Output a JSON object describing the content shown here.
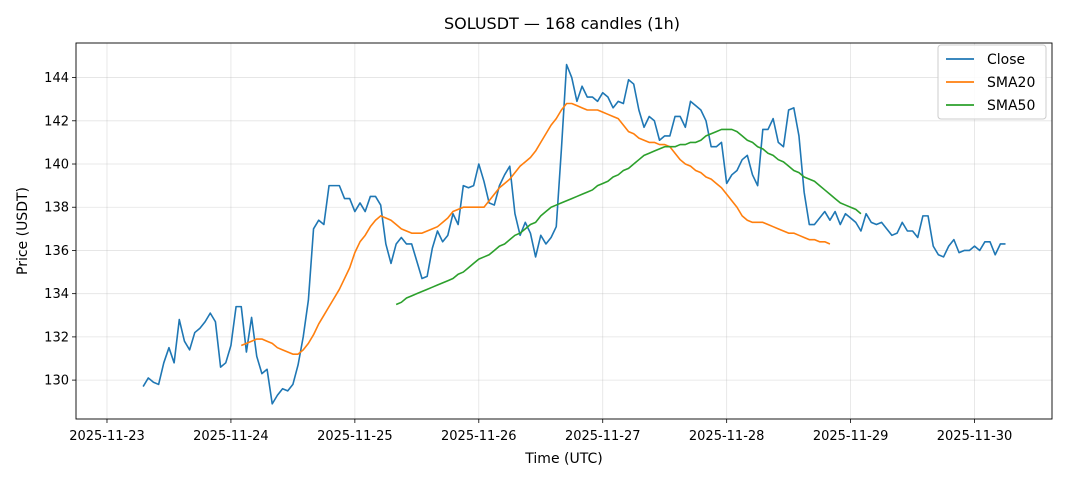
{
  "chart_data": {
    "type": "line",
    "title": "SOLUSDT — 168 candles (1h)",
    "xlabel": "Time (UTC)",
    "ylabel": "Price (USDT)",
    "x_start": "2025-11-23T07:00",
    "x_step_hours": 1,
    "xlim": [
      "2025-11-22T18:00",
      "2025-11-30T15:00"
    ],
    "ylim": [
      128.2,
      145.6
    ],
    "x_ticks": [
      "2025-11-23",
      "2025-11-24",
      "2025-11-25",
      "2025-11-26",
      "2025-11-27",
      "2025-11-28",
      "2025-11-29",
      "2025-11-30"
    ],
    "y_ticks": [
      130,
      132,
      134,
      136,
      138,
      140,
      142,
      144
    ],
    "grid": true,
    "legend": "top-right",
    "series": [
      {
        "name": "Close",
        "color": "#1f77b4",
        "values": [
          129.7,
          130.1,
          129.9,
          129.8,
          130.8,
          131.5,
          130.8,
          132.8,
          131.8,
          131.4,
          132.2,
          132.4,
          132.7,
          133.1,
          132.7,
          130.6,
          130.8,
          131.6,
          133.4,
          133.4,
          131.3,
          132.9,
          131.1,
          130.3,
          130.5,
          128.9,
          129.3,
          129.6,
          129.5,
          129.8,
          130.7,
          132.0,
          133.7,
          137.0,
          137.4,
          137.2,
          139.0,
          139.0,
          139.0,
          138.4,
          138.4,
          137.8,
          138.2,
          137.8,
          138.5,
          138.5,
          138.1,
          136.3,
          135.4,
          136.3,
          136.6,
          136.3,
          136.3,
          135.5,
          134.7,
          134.8,
          136.1,
          136.9,
          136.4,
          136.7,
          137.7,
          137.2,
          139.0,
          138.9,
          139.0,
          140.0,
          139.2,
          138.2,
          138.1,
          139.0,
          139.5,
          139.9,
          137.7,
          136.7,
          137.3,
          136.8,
          135.7,
          136.7,
          136.3,
          136.6,
          137.1,
          140.7,
          144.6,
          144.0,
          142.9,
          143.6,
          143.1,
          143.1,
          142.9,
          143.3,
          143.1,
          142.6,
          142.9,
          142.8,
          143.9,
          143.7,
          142.5,
          141.7,
          142.2,
          142.0,
          141.1,
          141.3,
          141.3,
          142.2,
          142.2,
          141.7,
          142.9,
          142.7,
          142.5,
          142.0,
          140.8,
          140.8,
          141.0,
          139.1,
          139.5,
          139.7,
          140.2,
          140.4,
          139.5,
          139.0,
          141.6,
          141.6,
          142.1,
          141.0,
          140.8,
          142.5,
          142.6,
          141.3,
          138.7,
          137.2,
          137.2,
          137.5,
          137.8,
          137.4,
          137.8,
          137.2,
          137.7,
          137.5,
          137.3,
          136.9,
          137.7,
          137.3,
          137.2,
          137.3,
          137.0,
          136.7,
          136.8,
          137.3,
          136.9,
          136.9,
          136.6,
          137.6,
          137.6,
          136.2,
          135.8,
          135.7,
          136.2,
          136.5,
          135.9,
          136.0,
          136.0,
          136.2,
          136.0,
          136.4,
          136.4,
          135.8,
          136.3,
          136.3
        ],
        "first_index": 0
      },
      {
        "name": "SMA20",
        "color": "#ff7f0e",
        "values": [
          131.6,
          131.7,
          131.8,
          131.9,
          131.9,
          131.8,
          131.7,
          131.5,
          131.4,
          131.3,
          131.2,
          131.2,
          131.4,
          131.7,
          132.1,
          132.6,
          133.0,
          133.4,
          133.8,
          134.2,
          134.7,
          135.2,
          135.9,
          136.4,
          136.7,
          137.1,
          137.4,
          137.6,
          137.5,
          137.4,
          137.2,
          137.0,
          136.9,
          136.8,
          136.8,
          136.8,
          136.9,
          137.0,
          137.1,
          137.3,
          137.5,
          137.8,
          137.9,
          138.0,
          138.0,
          138.0,
          138.0,
          138.0,
          138.3,
          138.6,
          138.9,
          139.1,
          139.3,
          139.6,
          139.9,
          140.1,
          140.3,
          140.6,
          141.0,
          141.4,
          141.8,
          142.1,
          142.5,
          142.8,
          142.8,
          142.7,
          142.6,
          142.5,
          142.5,
          142.5,
          142.4,
          142.3,
          142.2,
          142.1,
          141.8,
          141.5,
          141.4,
          141.2,
          141.1,
          141.0,
          141.0,
          140.9,
          140.9,
          140.8,
          140.5,
          140.2,
          140.0,
          139.9,
          139.7,
          139.6,
          139.4,
          139.3,
          139.1,
          138.9,
          138.6,
          138.3,
          138.0,
          137.6,
          137.4,
          137.3,
          137.3,
          137.3,
          137.2,
          137.1,
          137.0,
          136.9,
          136.8,
          136.8,
          136.7,
          136.6,
          136.5,
          136.5,
          136.4,
          136.4,
          136.3
        ],
        "first_index": 19
      },
      {
        "name": "SMA50",
        "color": "#2ca02c",
        "values": [
          133.5,
          133.6,
          133.8,
          133.9,
          134.0,
          134.1,
          134.2,
          134.3,
          134.4,
          134.5,
          134.6,
          134.7,
          134.9,
          135.0,
          135.2,
          135.4,
          135.6,
          135.7,
          135.8,
          136.0,
          136.2,
          136.3,
          136.5,
          136.7,
          136.8,
          137.0,
          137.2,
          137.3,
          137.6,
          137.8,
          138.0,
          138.1,
          138.2,
          138.3,
          138.4,
          138.5,
          138.6,
          138.7,
          138.8,
          139.0,
          139.1,
          139.2,
          139.4,
          139.5,
          139.7,
          139.8,
          140.0,
          140.2,
          140.4,
          140.5,
          140.6,
          140.7,
          140.8,
          140.8,
          140.8,
          140.9,
          140.9,
          141.0,
          141.0,
          141.1,
          141.3,
          141.4,
          141.5,
          141.6,
          141.6,
          141.6,
          141.5,
          141.3,
          141.1,
          141.0,
          140.8,
          140.7,
          140.5,
          140.4,
          140.2,
          140.1,
          139.9,
          139.7,
          139.6,
          139.4,
          139.3,
          139.2,
          139.0,
          138.8,
          138.6,
          138.4,
          138.2,
          138.1,
          138.0,
          137.9,
          137.7
        ],
        "first_index": 49
      }
    ]
  }
}
